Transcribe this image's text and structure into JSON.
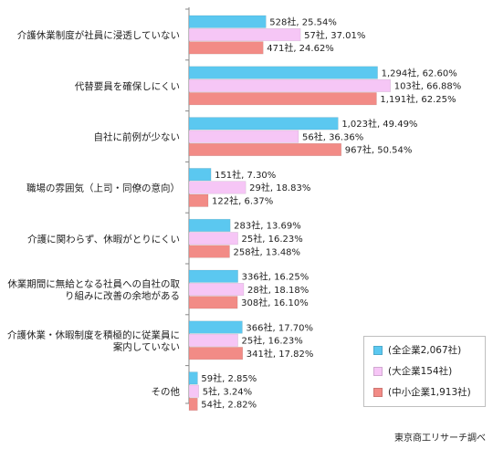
{
  "chart_data": {
    "type": "bar",
    "orientation": "horizontal",
    "categories": [
      [
        "介護休業制度が社員に浸透していない"
      ],
      [
        "代替要員を確保しにくい"
      ],
      [
        "自社に前例が少ない"
      ],
      [
        "職場の雰囲気（上司・同僚の意向）"
      ],
      [
        "介護に関わらず、休暇がとりにくい"
      ],
      [
        "休業期間に無給となる社員への自社の取",
        "り組みに改善の余地がある"
      ],
      [
        "介護休業・休暇制度を積極的に従業員に",
        "案内していない"
      ],
      [
        "その他"
      ]
    ],
    "series": [
      {
        "name": "(全企業2,067社)",
        "color": "#5bc8f0",
        "values": [
          25.54,
          62.6,
          49.49,
          7.3,
          13.69,
          16.25,
          17.7,
          2.85
        ],
        "labels": [
          "528社, 25.54%",
          "1,294社, 62.60%",
          "1,023社, 49.49%",
          "151社, 7.30%",
          "283社, 13.69%",
          "336社, 16.25%",
          "366社, 17.70%",
          "59社, 2.85%"
        ]
      },
      {
        "name": "(大企業154社)",
        "color": "#f6c6f6",
        "values": [
          37.01,
          66.88,
          36.36,
          18.83,
          16.23,
          18.18,
          16.23,
          3.24
        ],
        "labels": [
          "57社, 37.01%",
          "103社, 66.88%",
          "56社, 36.36%",
          "29社, 18.83%",
          "25社, 16.23%",
          "28社, 18.18%",
          "25社, 16.23%",
          "5社, 3.24%"
        ]
      },
      {
        "name": "(中小企業1,913社)",
        "color": "#f28b86",
        "values": [
          24.62,
          62.25,
          50.54,
          6.37,
          13.48,
          16.1,
          17.82,
          2.82
        ],
        "labels": [
          "471社, 24.62%",
          "1,191社, 62.25%",
          "967社, 50.54%",
          "122社, 6.37%",
          "258社, 13.48%",
          "308社, 16.10%",
          "341社, 17.82%",
          "54社, 2.82%"
        ]
      }
    ],
    "xlim": [
      0,
      100
    ],
    "grid": false,
    "legend_position": "bottom-right"
  },
  "source_note": "東京商工リサーチ調べ"
}
